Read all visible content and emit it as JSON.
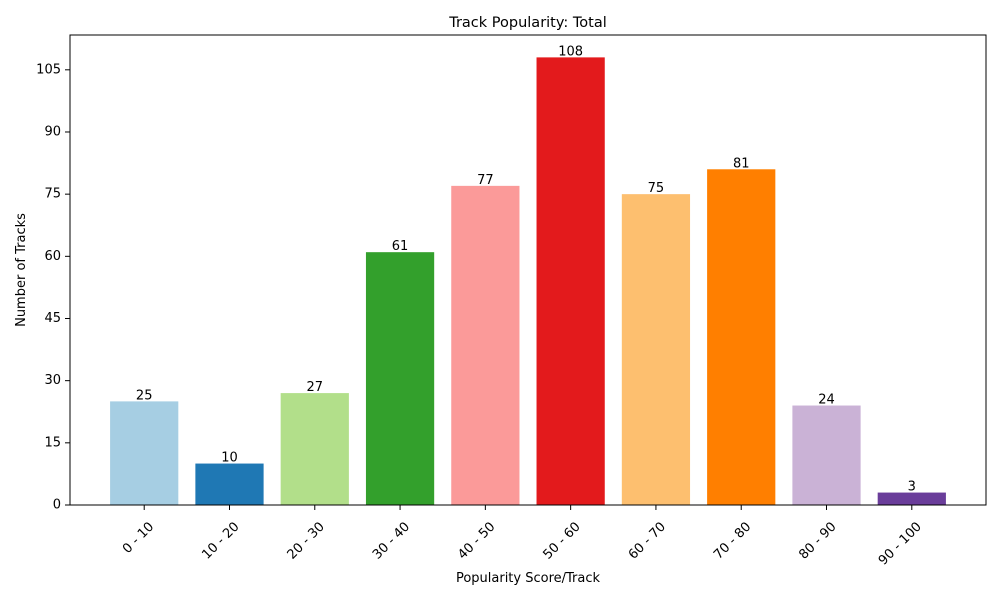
{
  "chart_data": {
    "type": "bar",
    "title": "Track Popularity: Total",
    "xlabel": "Popularity Score/Track",
    "ylabel": "Number of Tracks",
    "categories": [
      "0 - 10",
      "10 - 20",
      "20 - 30",
      "30 - 40",
      "40 - 50",
      "50 - 60",
      "60 - 70",
      "70 - 80",
      "80 - 90",
      "90 - 100"
    ],
    "values": [
      25,
      10,
      27,
      61,
      77,
      108,
      75,
      81,
      24,
      3
    ],
    "data_labels": [
      "25",
      "10",
      "27",
      "61",
      "77",
      "108",
      "75",
      "81",
      "24",
      "3"
    ],
    "colors": [
      "#a6cee3",
      "#1f78b4",
      "#b2df8a",
      "#33a02c",
      "#fb9a99",
      "#e31a1c",
      "#fdbf6f",
      "#ff7f00",
      "#cab2d6",
      "#6a3d9a"
    ],
    "ylim": [
      0,
      113.4
    ],
    "yticks": [
      0,
      15,
      30,
      45,
      60,
      75,
      90,
      105
    ],
    "ytick_labels": [
      "0",
      "15",
      "30",
      "45",
      "60",
      "75",
      "90",
      "105"
    ],
    "grid": false,
    "legend": "none",
    "xtick_rotation_deg": 45
  }
}
